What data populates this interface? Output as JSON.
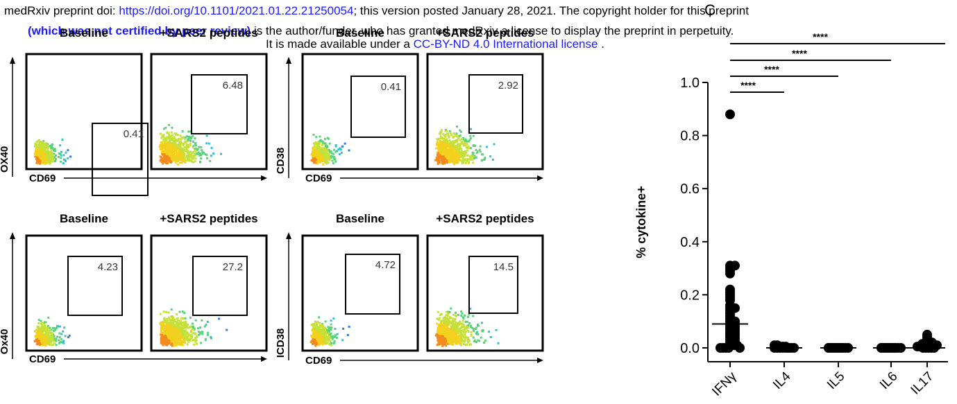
{
  "header": {
    "line1_prefix": "medRxiv preprint doi: ",
    "doi_link": "https://doi.org/10.1101/2021.01.22.21250054",
    "line1_suffix": "; this version posted January 28, 2021. The copyright holder for this preprint",
    "line2_bold": "(which was not certified by peer review)",
    "line2_rest": " is the author/funder, who has granted medRxiv a license to display the preprint in perpetuity.",
    "line3_prefix": "It is made available under a ",
    "license_link": "CC-BY-ND 4.0 International license",
    "line3_suffix": " ."
  },
  "flow_panels": [
    {
      "id": "top-left",
      "y_axis": "OX40",
      "x_axis": "CD69",
      "plots": [
        {
          "title": "Baseline",
          "gate_value": "0.41",
          "stim": false
        },
        {
          "title": "+SARS2 peptides",
          "gate_value": "6.48",
          "stim": true
        }
      ]
    },
    {
      "id": "top-right",
      "y_axis": "CD38",
      "x_axis": "CD69",
      "plots": [
        {
          "title": "Baseline",
          "gate_value": "0.41",
          "stim": false
        },
        {
          "title": "+SARS2 peptides",
          "gate_value": "2.92",
          "stim": true
        }
      ]
    },
    {
      "id": "bottom-left",
      "y_axis": "Ox40",
      "x_axis": "CD69",
      "plots": [
        {
          "title": "Baseline",
          "gate_value": "4.23",
          "stim": false
        },
        {
          "title": "+SARS2 peptides",
          "gate_value": "27.2",
          "stim": true
        }
      ]
    },
    {
      "id": "bottom-right",
      "y_axis": "ICD38",
      "x_axis": "CD69",
      "plots": [
        {
          "title": "Baseline",
          "gate_value": "4.72",
          "stim": false
        },
        {
          "title": "+SARS2 peptides",
          "gate_value": "14.5",
          "stim": true
        }
      ]
    }
  ],
  "panel_label": "C",
  "chart_data": {
    "type": "scatter",
    "ylabel": "% cytokine+",
    "xlabel": "",
    "ylim": [
      0,
      1.0
    ],
    "yticks": [
      "0.0",
      "0.2",
      "0.4",
      "0.6",
      "0.8",
      "1.0"
    ],
    "categories": [
      "IFNγ",
      "IL4",
      "IL5",
      "IL6",
      "IL17"
    ],
    "series": [
      {
        "category": "IFNγ",
        "median": 0.09,
        "values": [
          0.88,
          0.31,
          0.31,
          0.3,
          0.29,
          0.28,
          0.22,
          0.21,
          0.2,
          0.19,
          0.18,
          0.16,
          0.15,
          0.15,
          0.14,
          0.13,
          0.12,
          0.11,
          0.1,
          0.1,
          0.09,
          0.09,
          0.08,
          0.08,
          0.07,
          0.07,
          0.06,
          0.06,
          0.05,
          0.05,
          0.04,
          0.04,
          0.03,
          0.03,
          0.02,
          0.02,
          0.01,
          0.01,
          0.01,
          0.0,
          0.0,
          0.0,
          0.0,
          0.0
        ]
      },
      {
        "category": "IL4",
        "median": 0.0,
        "values": [
          0.01,
          0.01,
          0.005,
          0.005,
          0.005,
          0.0,
          0.0,
          0.0,
          0.0,
          0.0,
          0.0,
          0.0,
          0.0,
          0.0
        ]
      },
      {
        "category": "IL5",
        "median": 0.0,
        "values": [
          0.0,
          0.0,
          0.0,
          0.0,
          0.0,
          0.0,
          0.0,
          0.0,
          0.0,
          0.0,
          0.0,
          0.0,
          0.0,
          0.0
        ]
      },
      {
        "category": "IL6",
        "median": 0.0,
        "values": [
          0.0,
          0.0,
          0.0,
          0.0,
          0.0,
          0.0,
          0.0,
          0.0,
          0.0,
          0.0,
          0.0,
          0.0,
          0.0,
          0.0
        ]
      },
      {
        "category": "IL17",
        "median": 0.0,
        "values": [
          0.05,
          0.04,
          0.03,
          0.02,
          0.02,
          0.015,
          0.01,
          0.01,
          0.005,
          0.005,
          0.0,
          0.0,
          0.0,
          0.0,
          0.0
        ]
      }
    ],
    "significance": [
      {
        "from": "IFNγ",
        "to": "IL4",
        "label": "****"
      },
      {
        "from": "IFNγ",
        "to": "IL5",
        "label": "****"
      },
      {
        "from": "IFNγ",
        "to": "IL6",
        "label": "****"
      },
      {
        "from": "IFNγ",
        "to": "IL17",
        "label": "****"
      }
    ]
  }
}
